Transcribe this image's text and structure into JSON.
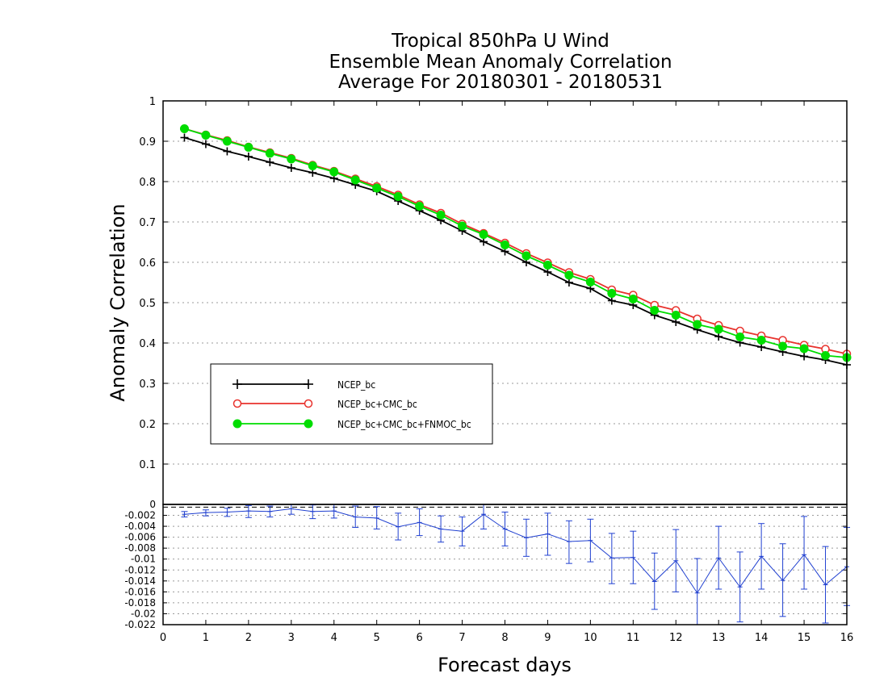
{
  "chart_data": [
    {
      "type": "line",
      "title_lines": [
        "Tropical 850hPa U Wind",
        "Ensemble Mean Anomaly Correlation",
        "Average For 20180301 - 20180531"
      ],
      "ylabel": "Anomaly Correlation",
      "xlim": [
        0,
        16
      ],
      "ylim": [
        0,
        1
      ],
      "yticks": [
        "0.1",
        "0.2",
        "0.3",
        "0.4",
        "0.5",
        "0.6",
        "0.7",
        "0.8",
        "0.9",
        "1"
      ],
      "grid": true,
      "legend_position": "lower-left",
      "x": [
        0.5,
        1,
        1.5,
        2,
        2.5,
        3,
        3.5,
        4,
        4.5,
        5,
        5.5,
        6,
        6.5,
        7,
        7.5,
        8,
        8.5,
        9,
        9.5,
        10,
        10.5,
        11,
        11.5,
        12,
        12.5,
        13,
        13.5,
        14,
        14.5,
        15,
        15.5,
        16
      ],
      "series": [
        {
          "name": "NCEP_bc",
          "color": "#000000",
          "marker": "plus",
          "values": [
            0.909,
            0.893,
            0.875,
            0.862,
            0.848,
            0.834,
            0.822,
            0.808,
            0.792,
            0.776,
            0.752,
            0.728,
            0.704,
            0.678,
            0.651,
            0.627,
            0.6,
            0.576,
            0.55,
            0.535,
            0.505,
            0.494,
            0.469,
            0.452,
            0.433,
            0.416,
            0.401,
            0.39,
            0.378,
            0.367,
            0.358,
            0.346
          ]
        },
        {
          "name": "NCEP_bc+CMC_bc",
          "color": "#e8322d",
          "marker": "open-circle",
          "values": [
            0.931,
            0.916,
            0.902,
            0.886,
            0.872,
            0.858,
            0.841,
            0.826,
            0.807,
            0.788,
            0.767,
            0.743,
            0.722,
            0.695,
            0.672,
            0.648,
            0.622,
            0.599,
            0.575,
            0.558,
            0.532,
            0.519,
            0.494,
            0.481,
            0.46,
            0.444,
            0.43,
            0.418,
            0.407,
            0.395,
            0.385,
            0.373
          ]
        },
        {
          "name": "NCEP_bc+CMC_bc+FNMOC_bc",
          "color": "#00dd00",
          "marker": "filled-circle",
          "values": [
            0.931,
            0.915,
            0.9,
            0.885,
            0.87,
            0.856,
            0.839,
            0.824,
            0.804,
            0.784,
            0.763,
            0.739,
            0.717,
            0.69,
            0.669,
            0.643,
            0.616,
            0.593,
            0.568,
            0.551,
            0.523,
            0.509,
            0.481,
            0.469,
            0.446,
            0.434,
            0.415,
            0.407,
            0.392,
            0.386,
            0.369,
            0.364
          ]
        }
      ]
    },
    {
      "type": "line",
      "xlabel": "Forecast days",
      "xlim": [
        0,
        16
      ],
      "xticks": [
        "0",
        "1",
        "2",
        "3",
        "4",
        "5",
        "6",
        "7",
        "8",
        "9",
        "10",
        "11",
        "12",
        "13",
        "14",
        "15",
        "16"
      ],
      "ylim": [
        -0.022,
        0
      ],
      "yticks": [
        "0",
        "-0.002",
        "-0.004",
        "-0.006",
        "-0.008",
        "-0.01",
        "-0.012",
        "-0.014",
        "-0.016",
        "-0.018",
        "-0.02",
        "-0.022"
      ],
      "grid": true,
      "reference_line": -0.0005,
      "series": [
        {
          "color": "#1f3fd0",
          "marker": "error-bar",
          "x": [
            0.5,
            1,
            1.5,
            2,
            2.5,
            3,
            3.5,
            4,
            4.5,
            5,
            5.5,
            6,
            6.5,
            7,
            7.5,
            8,
            8.5,
            9,
            9.5,
            10,
            10.5,
            11,
            11.5,
            12,
            12.5,
            13,
            13.5,
            14,
            14.5,
            15,
            15.5,
            16
          ],
          "values": [
            -0.0018,
            -0.0015,
            -0.0014,
            -0.0012,
            -0.0013,
            -0.0008,
            -0.0013,
            -0.0012,
            -0.0023,
            -0.0025,
            -0.0041,
            -0.0033,
            -0.0045,
            -0.0049,
            -0.0018,
            -0.0045,
            -0.0061,
            -0.0054,
            -0.0068,
            -0.0066,
            -0.0098,
            -0.0097,
            -0.0141,
            -0.0103,
            -0.0162,
            -0.0098,
            -0.0151,
            -0.0095,
            -0.0139,
            -0.0092,
            -0.0147,
            -0.0114
          ],
          "err_low": [
            -0.0023,
            -0.0021,
            -0.0022,
            -0.0024,
            -0.0023,
            -0.0018,
            -0.0026,
            -0.0025,
            -0.0042,
            -0.0045,
            -0.0065,
            -0.0057,
            -0.0069,
            -0.0076,
            -0.0045,
            -0.0076,
            -0.0095,
            -0.0093,
            -0.0108,
            -0.0105,
            -0.0145,
            -0.0145,
            -0.0192,
            -0.016,
            -0.0224,
            -0.0155,
            -0.0215,
            -0.0155,
            -0.0205,
            -0.0155,
            -0.0217,
            -0.0185
          ],
          "err_high": [
            -0.0013,
            -0.001,
            -0.0007,
            -0.0002,
            -0.0003,
            0.0,
            -0.0001,
            0.0,
            -0.0003,
            -0.0004,
            -0.0016,
            -0.0008,
            -0.0021,
            -0.0023,
            0.001,
            -0.0014,
            -0.0027,
            -0.0016,
            -0.003,
            -0.0027,
            -0.0053,
            -0.0049,
            -0.0089,
            -0.0046,
            -0.0099,
            -0.004,
            -0.0087,
            -0.0035,
            -0.0072,
            -0.0022,
            -0.0077,
            -0.0042
          ]
        }
      ]
    }
  ]
}
